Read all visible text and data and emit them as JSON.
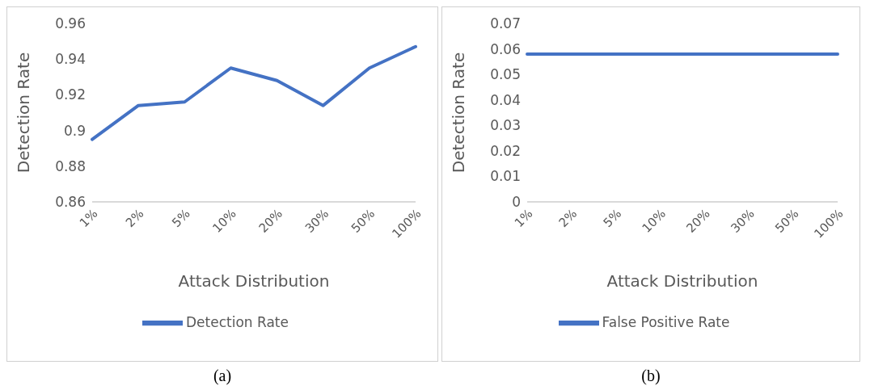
{
  "chart_data": [
    {
      "type": "line",
      "categories": [
        "1%",
        "2%",
        "5%",
        "10%",
        "20%",
        "30%",
        "50%",
        "100%"
      ],
      "xlabel": "Attack Distribution",
      "ylabel": "Detection Rate",
      "ylim": [
        0.86,
        0.96
      ],
      "yticks": [
        0.86,
        0.88,
        0.9,
        0.92,
        0.94,
        0.96
      ],
      "marker": "none",
      "legend": "bottom",
      "annotations": [
        "(a)"
      ],
      "series": [
        {
          "name": "Detection Rate",
          "color": "#4472c4",
          "values": [
            0.895,
            0.914,
            0.916,
            0.935,
            0.928,
            0.914,
            0.935,
            0.947
          ]
        }
      ]
    },
    {
      "type": "line",
      "categories": [
        "1%",
        "2%",
        "5%",
        "10%",
        "20%",
        "30%",
        "50%",
        "100%"
      ],
      "xlabel": "Attack Distribution",
      "ylabel": "Detection Rate",
      "ylim": [
        0,
        0.07
      ],
      "yticks": [
        0,
        0.01,
        0.02,
        0.03,
        0.04,
        0.05,
        0.06,
        0.07
      ],
      "marker": "none",
      "legend": "bottom",
      "annotations": [
        "(b)"
      ],
      "series": [
        {
          "name": "False Positive Rate",
          "color": "#4472c4",
          "values": [
            0.058,
            0.058,
            0.058,
            0.058,
            0.058,
            0.058,
            0.058,
            0.058
          ]
        }
      ]
    }
  ]
}
